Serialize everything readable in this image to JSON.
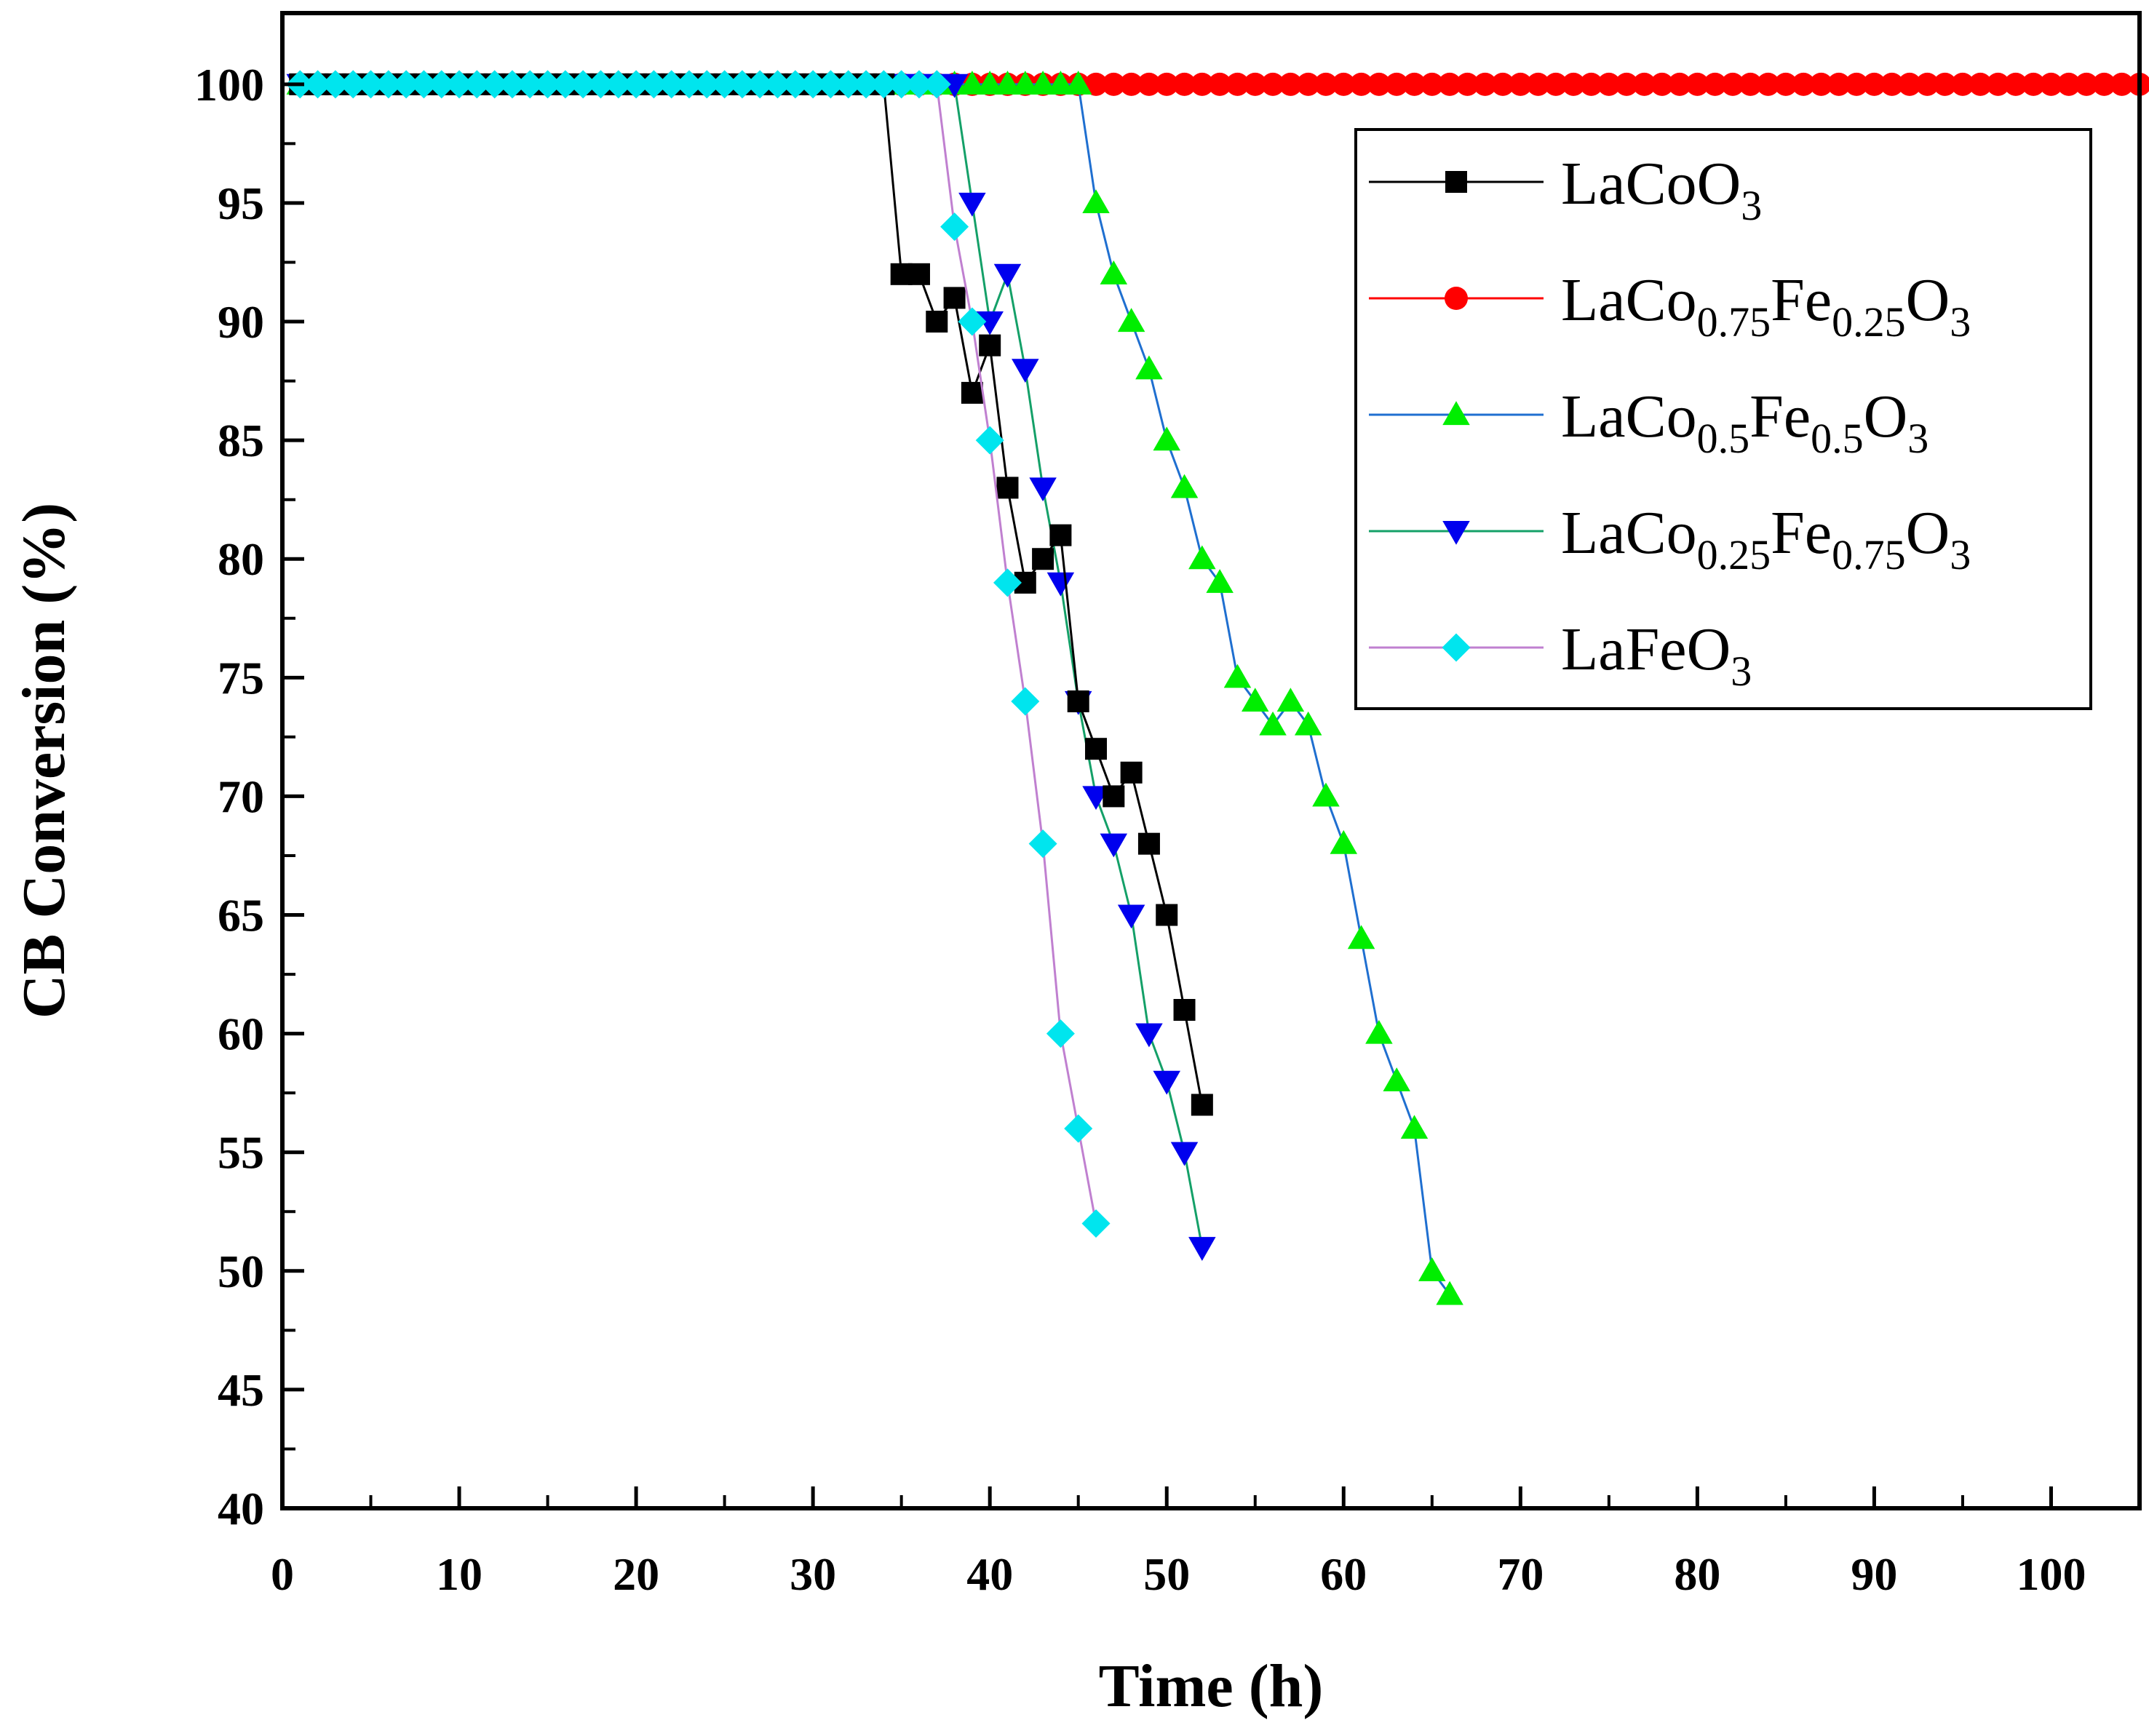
{
  "chart_data": {
    "type": "line",
    "title": "",
    "xlabel": "Time (h)",
    "ylabel": "CB Conversion (%)",
    "xlim": [
      0,
      105
    ],
    "ylim": [
      40,
      103
    ],
    "xticks": [
      "0",
      "10",
      "20",
      "30",
      "40",
      "50",
      "60",
      "70",
      "80",
      "90",
      "100"
    ],
    "yticks": [
      "40",
      "45",
      "50",
      "55",
      "60",
      "65",
      "70",
      "75",
      "80",
      "85",
      "90",
      "95",
      "100"
    ],
    "grid": false,
    "legend_position": "top-right",
    "series": [
      {
        "name": "LaCoO3",
        "legend": {
          "base": "LaCoO",
          "sub": "3"
        },
        "color": "#000000",
        "marker": "square",
        "marker_color": "#000000",
        "x": [
          1,
          2,
          3,
          4,
          5,
          6,
          7,
          8,
          9,
          10,
          11,
          12,
          13,
          14,
          15,
          16,
          17,
          18,
          19,
          20,
          21,
          22,
          23,
          24,
          25,
          26,
          27,
          28,
          29,
          30,
          31,
          32,
          33,
          34,
          35,
          36,
          37,
          38,
          39,
          40,
          41,
          42,
          43,
          44,
          45,
          46,
          47,
          48,
          49,
          50,
          51,
          52
        ],
        "y": [
          100,
          100,
          100,
          100,
          100,
          100,
          100,
          100,
          100,
          100,
          100,
          100,
          100,
          100,
          100,
          100,
          100,
          100,
          100,
          100,
          100,
          100,
          100,
          100,
          100,
          100,
          100,
          100,
          100,
          100,
          100,
          100,
          100,
          100,
          92,
          92,
          90,
          91,
          87,
          89,
          83,
          79,
          80,
          81,
          74,
          72,
          70,
          71,
          68,
          65,
          61,
          57
        ]
      },
      {
        "name": "LaCo0.75Fe0.25O3",
        "legend": {
          "parts": [
            "LaCo",
            "0.75",
            "Fe",
            "0.25",
            "O",
            "3"
          ]
        },
        "color": "#ff0000",
        "marker": "circle",
        "marker_color": "#ff0000",
        "x": [
          1,
          2,
          3,
          4,
          5,
          6,
          7,
          8,
          9,
          10,
          11,
          12,
          13,
          14,
          15,
          16,
          17,
          18,
          19,
          20,
          21,
          22,
          23,
          24,
          25,
          26,
          27,
          28,
          29,
          30,
          31,
          32,
          33,
          34,
          35,
          36,
          37,
          38,
          39,
          40,
          41,
          42,
          43,
          44,
          45,
          46,
          47,
          48,
          49,
          50,
          51,
          52,
          53,
          54,
          55,
          56,
          57,
          58,
          59,
          60,
          61,
          62,
          63,
          64,
          65,
          66,
          67,
          68,
          69,
          70,
          71,
          72,
          73,
          74,
          75,
          76,
          77,
          78,
          79,
          80,
          81,
          82,
          83,
          84,
          85,
          86,
          87,
          88,
          89,
          90,
          91,
          92,
          93,
          94,
          95,
          96,
          97,
          98,
          99,
          100,
          101,
          102,
          103,
          104,
          105
        ],
        "y": [
          100,
          100,
          100,
          100,
          100,
          100,
          100,
          100,
          100,
          100,
          100,
          100,
          100,
          100,
          100,
          100,
          100,
          100,
          100,
          100,
          100,
          100,
          100,
          100,
          100,
          100,
          100,
          100,
          100,
          100,
          100,
          100,
          100,
          100,
          100,
          100,
          100,
          100,
          100,
          100,
          100,
          100,
          100,
          100,
          100,
          100,
          100,
          100,
          100,
          100,
          100,
          100,
          100,
          100,
          100,
          100,
          100,
          100,
          100,
          100,
          100,
          100,
          100,
          100,
          100,
          100,
          100,
          100,
          100,
          100,
          100,
          100,
          100,
          100,
          100,
          100,
          100,
          100,
          100,
          100,
          100,
          100,
          100,
          100,
          100,
          100,
          100,
          100,
          100,
          100,
          100,
          100,
          100,
          100,
          100,
          100,
          100,
          100,
          100,
          100,
          100,
          100,
          100,
          100,
          100
        ]
      },
      {
        "name": "LaCo0.5Fe0.5O3",
        "legend": {
          "parts": [
            "LaCo",
            "0.5",
            "Fe",
            "0.5",
            "O",
            "3"
          ]
        },
        "color": "#1f6fd0",
        "marker": "triangle-up",
        "marker_color": "#00ee00",
        "x": [
          1,
          2,
          3,
          4,
          5,
          6,
          7,
          8,
          9,
          10,
          11,
          12,
          13,
          14,
          15,
          16,
          17,
          18,
          19,
          20,
          21,
          22,
          23,
          24,
          25,
          26,
          27,
          28,
          29,
          30,
          31,
          32,
          33,
          34,
          35,
          36,
          37,
          38,
          39,
          40,
          41,
          42,
          43,
          44,
          45,
          46,
          47,
          48,
          49,
          50,
          51,
          52,
          53,
          54,
          55,
          56,
          57,
          58,
          59,
          60,
          61,
          62,
          63,
          64,
          65,
          66
        ],
        "y": [
          100,
          100,
          100,
          100,
          100,
          100,
          100,
          100,
          100,
          100,
          100,
          100,
          100,
          100,
          100,
          100,
          100,
          100,
          100,
          100,
          100,
          100,
          100,
          100,
          100,
          100,
          100,
          100,
          100,
          100,
          100,
          100,
          100,
          100,
          100,
          100,
          100,
          100,
          100,
          100,
          100,
          100,
          100,
          100,
          100,
          95,
          92,
          90,
          88,
          85,
          83,
          80,
          79,
          75,
          74,
          73,
          74,
          73,
          70,
          68,
          64,
          60,
          58,
          56,
          50,
          49
        ]
      },
      {
        "name": "LaCo0.25Fe0.75O3",
        "legend": {
          "parts": [
            "LaCo",
            "0.25",
            "Fe",
            "0.75",
            "O",
            "3"
          ]
        },
        "color": "#14a068",
        "marker": "triangle-down",
        "marker_color": "#0000ee",
        "x": [
          1,
          2,
          3,
          4,
          5,
          6,
          7,
          8,
          9,
          10,
          11,
          12,
          13,
          14,
          15,
          16,
          17,
          18,
          19,
          20,
          21,
          22,
          23,
          24,
          25,
          26,
          27,
          28,
          29,
          30,
          31,
          32,
          33,
          34,
          35,
          36,
          37,
          38,
          39,
          40,
          41,
          42,
          43,
          44,
          45,
          46,
          47,
          48,
          49,
          50,
          51,
          52
        ],
        "y": [
          100,
          100,
          100,
          100,
          100,
          100,
          100,
          100,
          100,
          100,
          100,
          100,
          100,
          100,
          100,
          100,
          100,
          100,
          100,
          100,
          100,
          100,
          100,
          100,
          100,
          100,
          100,
          100,
          100,
          100,
          100,
          100,
          100,
          100,
          100,
          100,
          100,
          100,
          95,
          90,
          92,
          88,
          83,
          79,
          74,
          70,
          68,
          65,
          60,
          58,
          55,
          51
        ]
      },
      {
        "name": "LaFeO3",
        "legend": {
          "base": "LaFeO",
          "sub": "3"
        },
        "color": "#c080d0",
        "marker": "diamond",
        "marker_color": "#00e5ee",
        "x": [
          1,
          2,
          3,
          4,
          5,
          6,
          7,
          8,
          9,
          10,
          11,
          12,
          13,
          14,
          15,
          16,
          17,
          18,
          19,
          20,
          21,
          22,
          23,
          24,
          25,
          26,
          27,
          28,
          29,
          30,
          31,
          32,
          33,
          34,
          35,
          36,
          37,
          38,
          39,
          40,
          41,
          42,
          43,
          44,
          45,
          46
        ],
        "y": [
          100,
          100,
          100,
          100,
          100,
          100,
          100,
          100,
          100,
          100,
          100,
          100,
          100,
          100,
          100,
          100,
          100,
          100,
          100,
          100,
          100,
          100,
          100,
          100,
          100,
          100,
          100,
          100,
          100,
          100,
          100,
          100,
          100,
          100,
          100,
          100,
          100,
          94,
          90,
          85,
          79,
          74,
          68,
          60,
          56,
          52
        ]
      }
    ]
  }
}
